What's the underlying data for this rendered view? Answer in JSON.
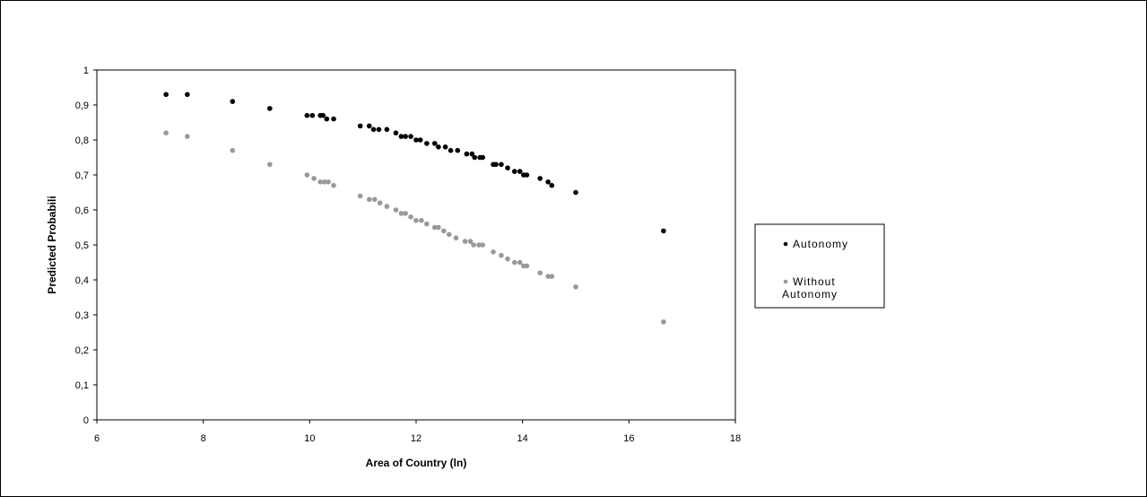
{
  "chart_data": {
    "type": "scatter",
    "xlabel": "Area of Country (ln)",
    "ylabel": "Predicted Probabili",
    "xlim": [
      6,
      18
    ],
    "ylim": [
      0,
      1
    ],
    "x_ticks": [
      "6",
      "8",
      "10",
      "12",
      "14",
      "16",
      "18"
    ],
    "y_ticks": [
      "0",
      "0,1",
      "0,2",
      "0,3",
      "0,4",
      "0,5",
      "0,6",
      "0,7",
      "0,8",
      "0,9",
      "1"
    ],
    "grid": false,
    "legend_position": "right",
    "series": [
      {
        "name": "Autonomy",
        "color": "#000000",
        "points": [
          [
            7.3,
            0.93
          ],
          [
            7.7,
            0.93
          ],
          [
            8.55,
            0.91
          ],
          [
            9.25,
            0.89
          ],
          [
            9.95,
            0.87
          ],
          [
            10.05,
            0.87
          ],
          [
            10.2,
            0.87
          ],
          [
            10.25,
            0.87
          ],
          [
            10.32,
            0.86
          ],
          [
            10.45,
            0.86
          ],
          [
            10.95,
            0.84
          ],
          [
            11.12,
            0.84
          ],
          [
            11.2,
            0.83
          ],
          [
            11.3,
            0.83
          ],
          [
            11.45,
            0.83
          ],
          [
            11.62,
            0.82
          ],
          [
            11.72,
            0.81
          ],
          [
            11.8,
            0.81
          ],
          [
            11.9,
            0.81
          ],
          [
            12.0,
            0.8
          ],
          [
            12.08,
            0.8
          ],
          [
            12.2,
            0.79
          ],
          [
            12.35,
            0.79
          ],
          [
            12.42,
            0.78
          ],
          [
            12.55,
            0.78
          ],
          [
            12.65,
            0.77
          ],
          [
            12.78,
            0.77
          ],
          [
            12.95,
            0.76
          ],
          [
            13.05,
            0.76
          ],
          [
            13.1,
            0.75
          ],
          [
            13.2,
            0.75
          ],
          [
            13.25,
            0.75
          ],
          [
            13.45,
            0.73
          ],
          [
            13.5,
            0.73
          ],
          [
            13.6,
            0.73
          ],
          [
            13.72,
            0.72
          ],
          [
            13.85,
            0.71
          ],
          [
            13.95,
            0.71
          ],
          [
            14.02,
            0.7
          ],
          [
            14.08,
            0.7
          ],
          [
            14.33,
            0.69
          ],
          [
            14.48,
            0.68
          ],
          [
            14.55,
            0.67
          ],
          [
            15.0,
            0.65
          ],
          [
            16.65,
            0.54
          ]
        ]
      },
      {
        "name": "Without Autonomy",
        "color": "#999999",
        "points": [
          [
            7.3,
            0.82
          ],
          [
            7.7,
            0.81
          ],
          [
            8.55,
            0.77
          ],
          [
            9.25,
            0.73
          ],
          [
            9.95,
            0.7
          ],
          [
            10.08,
            0.69
          ],
          [
            10.2,
            0.68
          ],
          [
            10.28,
            0.68
          ],
          [
            10.35,
            0.68
          ],
          [
            10.45,
            0.67
          ],
          [
            10.95,
            0.64
          ],
          [
            11.12,
            0.63
          ],
          [
            11.22,
            0.63
          ],
          [
            11.32,
            0.62
          ],
          [
            11.45,
            0.61
          ],
          [
            11.62,
            0.6
          ],
          [
            11.72,
            0.59
          ],
          [
            11.8,
            0.59
          ],
          [
            11.9,
            0.58
          ],
          [
            12.0,
            0.57
          ],
          [
            12.1,
            0.57
          ],
          [
            12.2,
            0.56
          ],
          [
            12.35,
            0.55
          ],
          [
            12.42,
            0.55
          ],
          [
            12.52,
            0.54
          ],
          [
            12.62,
            0.53
          ],
          [
            12.75,
            0.52
          ],
          [
            12.92,
            0.51
          ],
          [
            13.02,
            0.51
          ],
          [
            13.08,
            0.5
          ],
          [
            13.18,
            0.5
          ],
          [
            13.25,
            0.5
          ],
          [
            13.45,
            0.48
          ],
          [
            13.6,
            0.47
          ],
          [
            13.72,
            0.46
          ],
          [
            13.85,
            0.45
          ],
          [
            13.95,
            0.45
          ],
          [
            14.02,
            0.44
          ],
          [
            14.08,
            0.44
          ],
          [
            14.33,
            0.42
          ],
          [
            14.48,
            0.41
          ],
          [
            14.55,
            0.41
          ],
          [
            15.0,
            0.38
          ],
          [
            16.65,
            0.28
          ]
        ]
      }
    ]
  }
}
